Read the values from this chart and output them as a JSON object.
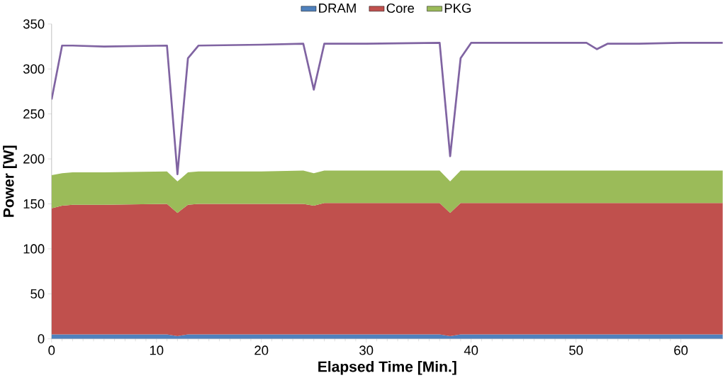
{
  "chart_data": {
    "type": "area",
    "stacked": true,
    "xlabel": "Elapsed Time [Min.]",
    "ylabel": "Power [W]",
    "x": [
      0,
      1,
      2,
      5,
      11,
      12,
      13,
      14,
      20,
      24,
      25,
      26,
      30,
      37,
      38,
      39,
      40,
      45,
      51,
      52,
      53,
      56,
      60,
      64
    ],
    "xlim": [
      0,
      64
    ],
    "xticks": [
      0,
      10,
      20,
      30,
      40,
      50,
      60
    ],
    "ylim": [
      0,
      350
    ],
    "yticks": [
      0,
      50,
      100,
      150,
      200,
      250,
      300,
      350
    ],
    "legend": "top",
    "grid": false,
    "series": [
      {
        "name": "DRAM",
        "color": "#4f81bd",
        "values": [
          5,
          5,
          5,
          5,
          5,
          3,
          5,
          5,
          5,
          5,
          5,
          5,
          5,
          5,
          3,
          5,
          5,
          5,
          5,
          5,
          5,
          5,
          5,
          5
        ]
      },
      {
        "name": "Core",
        "color": "#c0504d",
        "values": [
          140,
          143,
          144,
          144,
          145,
          137,
          144,
          145,
          145,
          145,
          143,
          146,
          146,
          146,
          137,
          146,
          146,
          146,
          146,
          146,
          146,
          146,
          146,
          146
        ]
      },
      {
        "name": "PKG",
        "color": "#9bbb59",
        "values": [
          37,
          36,
          36,
          36,
          36,
          35,
          36,
          36,
          36,
          37,
          36,
          36,
          36,
          36,
          35,
          36,
          36,
          36,
          36,
          36,
          36,
          36,
          36,
          36
        ]
      },
      {
        "type": "line",
        "color": "#8064a2",
        "values": [
          266,
          326,
          326,
          325,
          326,
          183,
          312,
          326,
          327,
          328,
          277,
          328,
          328,
          329,
          203,
          312,
          329,
          329,
          329,
          322,
          328,
          328,
          329,
          329
        ]
      }
    ]
  }
}
